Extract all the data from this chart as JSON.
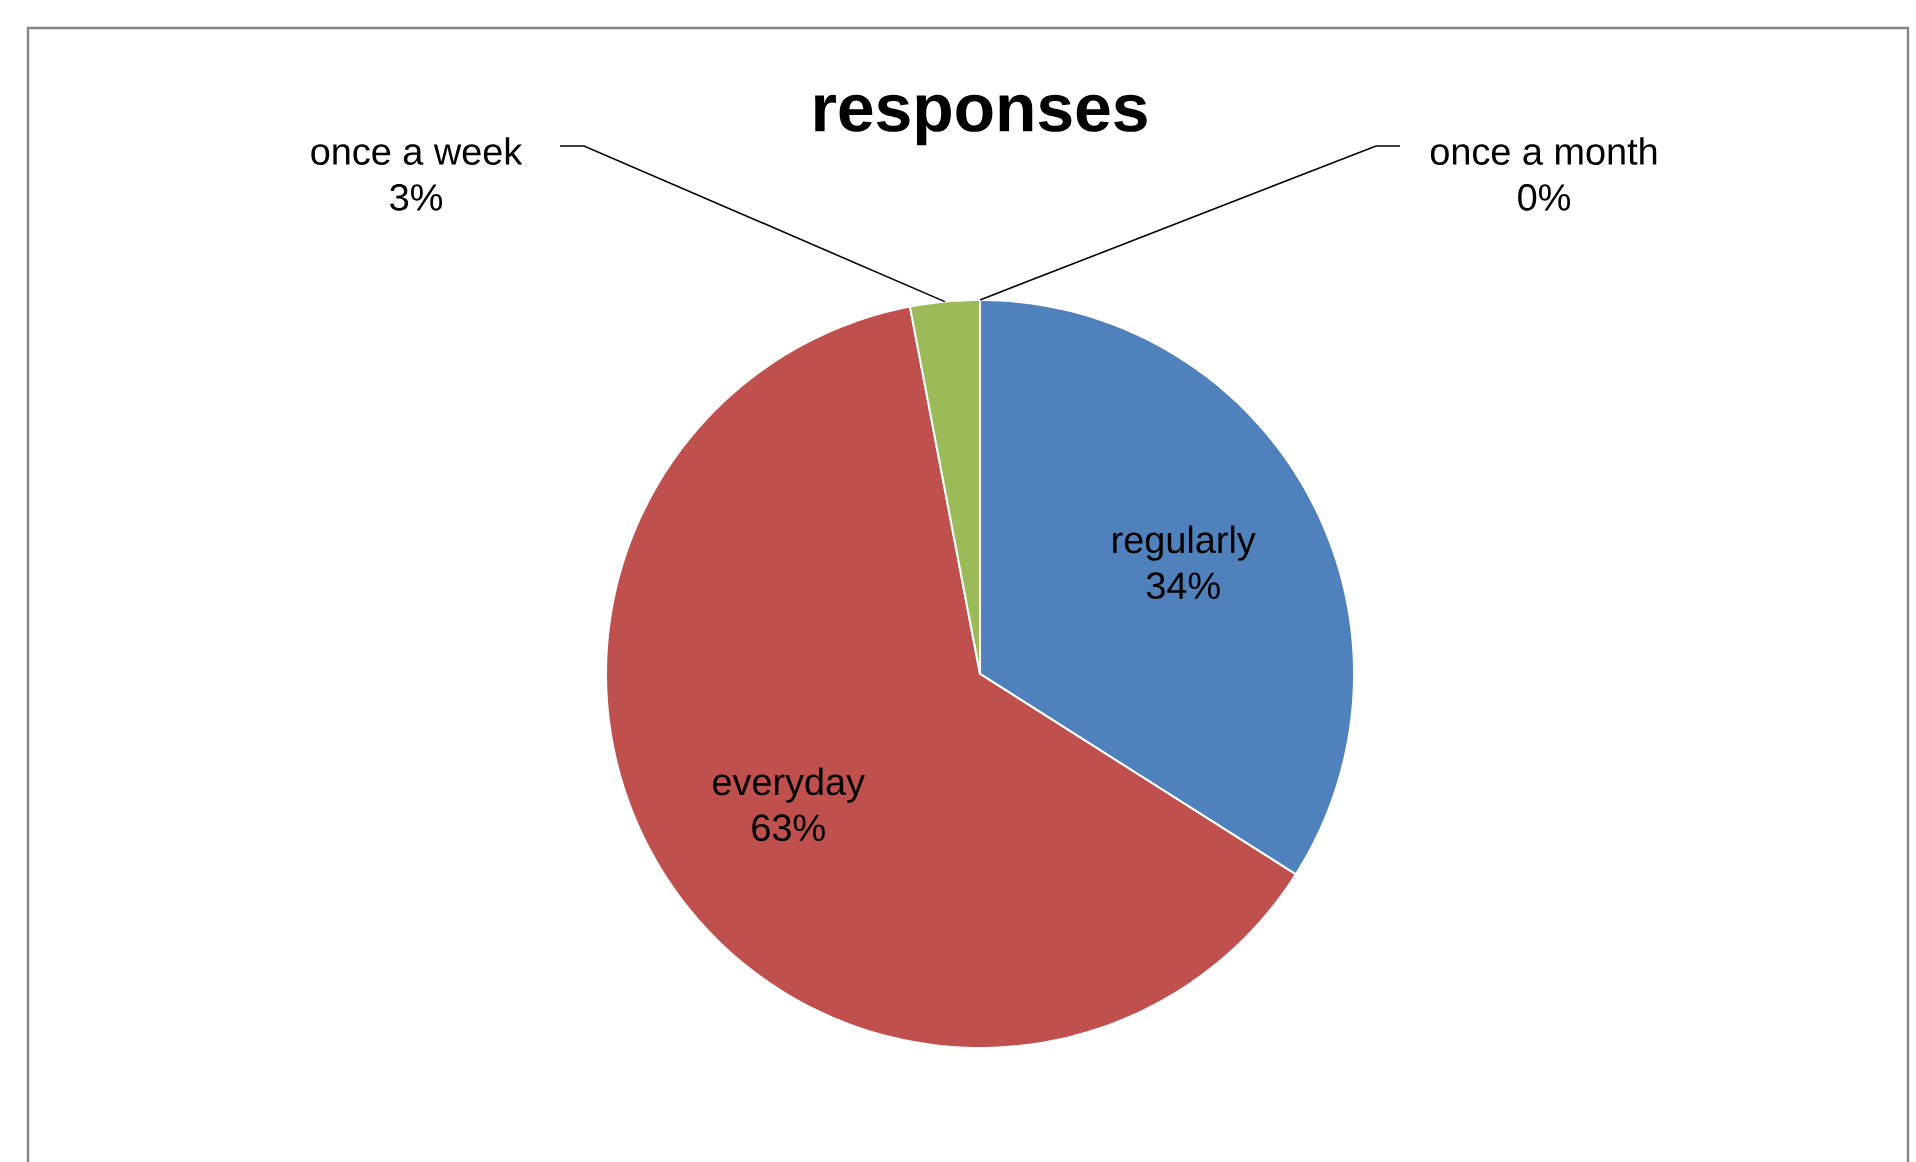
{
  "chart_data": {
    "type": "pie",
    "title": "responses",
    "categories": [
      "regularly",
      "everyday",
      "once a week",
      "once a month"
    ],
    "values": [
      34,
      63,
      3,
      0
    ],
    "colors": [
      "#4f81bd",
      "#c0504d",
      "#9bbb59",
      "#8064a2"
    ],
    "value_labels": [
      "34%",
      "63%",
      "3%",
      "0%"
    ]
  }
}
